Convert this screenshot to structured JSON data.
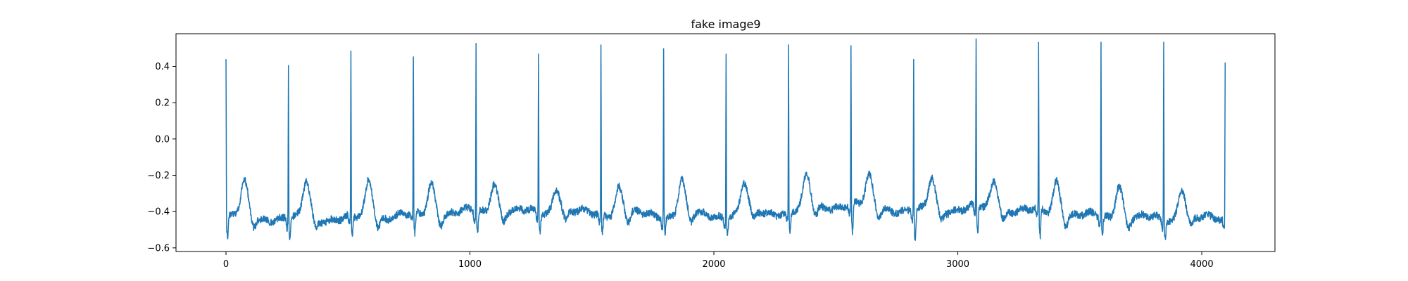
{
  "chart_data": {
    "type": "line",
    "title": "fake image9",
    "xlabel": "",
    "ylabel": "",
    "xlim": [
      -205,
      4300
    ],
    "ylim": [
      -0.62,
      0.58
    ],
    "x_ticks": [
      0,
      1000,
      2000,
      3000,
      4000
    ],
    "y_ticks": [
      -0.6,
      -0.4,
      -0.2,
      0.0,
      0.2,
      0.4
    ],
    "x_tick_labels": [
      "0",
      "1000",
      "2000",
      "3000",
      "4000"
    ],
    "y_tick_labels": [
      "−0.6",
      "−0.4",
      "−0.2",
      "0.0",
      "0.2",
      "0.4"
    ],
    "grid": false,
    "line_color": "#1f77b4",
    "series": [
      {
        "x_start": 0,
        "x_end": 4096,
        "beats": [
          {
            "r_x": 0,
            "r_peak": 0.46,
            "s_trough": -0.55,
            "t_x": 75,
            "t_peak": -0.24,
            "baseline": -0.43
          },
          {
            "r_x": 256,
            "r_peak": 0.42,
            "s_trough": -0.56,
            "t_x": 330,
            "t_peak": -0.23,
            "baseline": -0.44
          },
          {
            "r_x": 512,
            "r_peak": 0.47,
            "s_trough": -0.55,
            "t_x": 586,
            "t_peak": -0.23,
            "baseline": -0.44
          },
          {
            "r_x": 768,
            "r_peak": 0.45,
            "s_trough": -0.54,
            "t_x": 842,
            "t_peak": -0.24,
            "baseline": -0.42
          },
          {
            "r_x": 1025,
            "r_peak": 0.51,
            "s_trough": -0.52,
            "t_x": 1099,
            "t_peak": -0.23,
            "baseline": -0.4
          },
          {
            "r_x": 1281,
            "r_peak": 0.48,
            "s_trough": -0.5,
            "t_x": 1355,
            "t_peak": -0.26,
            "baseline": -0.4
          },
          {
            "r_x": 1537,
            "r_peak": 0.5,
            "s_trough": -0.51,
            "t_x": 1611,
            "t_peak": -0.26,
            "baseline": -0.41
          },
          {
            "r_x": 1794,
            "r_peak": 0.53,
            "s_trough": -0.5,
            "t_x": 1868,
            "t_peak": -0.23,
            "baseline": -0.42
          },
          {
            "r_x": 2050,
            "r_peak": 0.5,
            "s_trough": -0.51,
            "t_x": 2124,
            "t_peak": -0.25,
            "baseline": -0.42
          },
          {
            "r_x": 2306,
            "r_peak": 0.52,
            "s_trough": -0.5,
            "t_x": 2380,
            "t_peak": -0.22,
            "baseline": -0.4
          },
          {
            "r_x": 2562,
            "r_peak": 0.51,
            "s_trough": -0.52,
            "t_x": 2636,
            "t_peak": -0.2,
            "baseline": -0.36
          },
          {
            "r_x": 2819,
            "r_peak": 0.45,
            "s_trough": -0.56,
            "t_x": 2893,
            "t_peak": -0.22,
            "baseline": -0.4
          },
          {
            "r_x": 3075,
            "r_peak": 0.53,
            "s_trough": -0.53,
            "t_x": 3149,
            "t_peak": -0.22,
            "baseline": -0.38
          },
          {
            "r_x": 3331,
            "r_peak": 0.5,
            "s_trough": -0.56,
            "t_x": 3405,
            "t_peak": -0.22,
            "baseline": -0.4
          },
          {
            "r_x": 3587,
            "r_peak": 0.54,
            "s_trough": -0.52,
            "t_x": 3661,
            "t_peak": -0.24,
            "baseline": -0.43
          },
          {
            "r_x": 3844,
            "r_peak": 0.54,
            "s_trough": -0.53,
            "t_x": 3918,
            "t_peak": -0.26,
            "baseline": -0.44
          },
          {
            "r_x": 4096,
            "r_peak": 0.43,
            "s_trough": -0.51,
            "t_x": null,
            "t_peak": null,
            "baseline": -0.44
          }
        ]
      }
    ]
  }
}
